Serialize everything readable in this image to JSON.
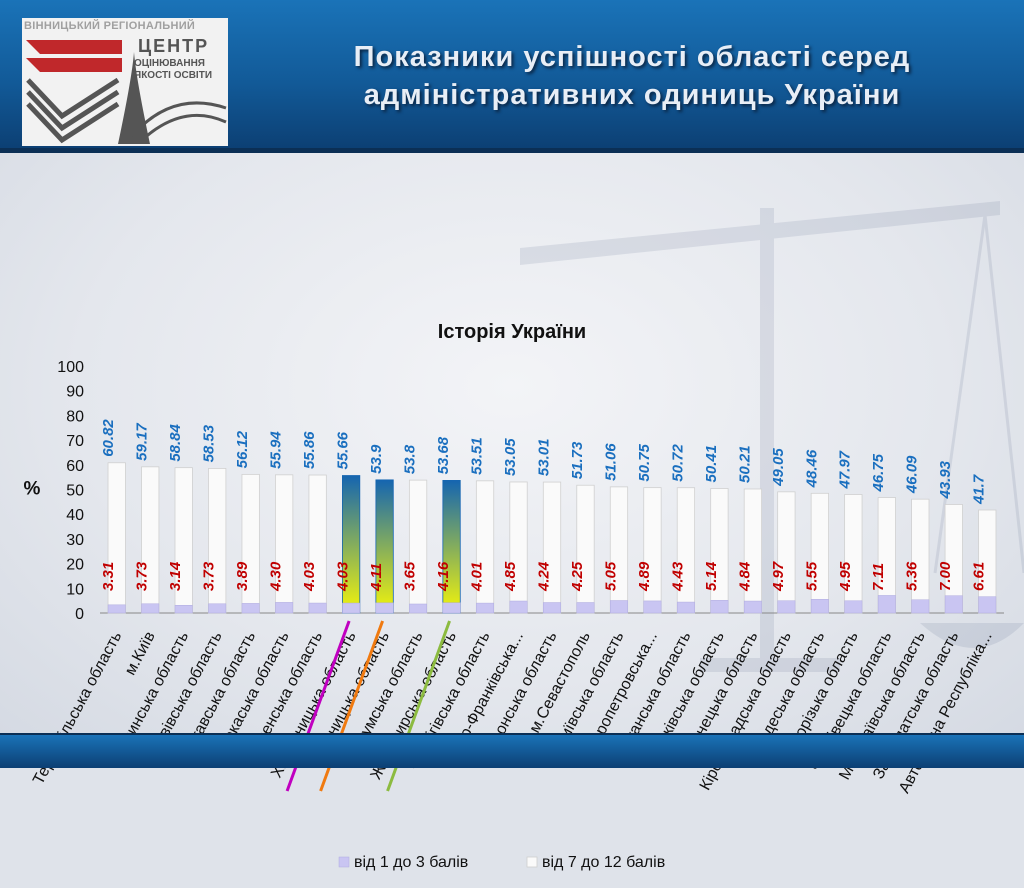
{
  "header": {
    "title_line1": "Показники успішності області серед",
    "title_line2": "адміністративних одиниць України"
  },
  "logo": {
    "line1": "ВІННИЦЬКИЙ РЕГІОНАЛЬНИЙ",
    "line2": "ЦЕНТР",
    "line3": "ОЦІНЮВАННЯ",
    "line4": "ЯКОСТІ ОСВІТИ"
  },
  "colors": {
    "low_series": "#c9c5f2",
    "high_series": "#fafafa",
    "high_label": "#1a6fbf",
    "low_label": "#c00000",
    "highlight_gradient": [
      "#1565b0",
      "#f3f50a"
    ],
    "marker_colors": [
      "#c000c0",
      "#f07a10",
      "#8cbb40"
    ]
  },
  "chart_data": {
    "type": "bar",
    "title": "Історія України",
    "ylabel": "%",
    "ylim": [
      0,
      100
    ],
    "yticks": [
      0,
      10,
      20,
      30,
      40,
      50,
      60,
      70,
      80,
      90,
      100
    ],
    "legend_position": "bottom",
    "categories": [
      "Тернопільська область",
      "м.Київ",
      "Волинська область",
      "Львівська область",
      "Полтавська область",
      "Черкаська область",
      "Рівненська область",
      "Хмельницька область",
      "Вінницька область",
      "Сумська область",
      "Житомирська область",
      "Чернігівська область",
      "Івано-Франківська...",
      "Херсонська область",
      "м.Севастополь",
      "Київська область",
      "Дніпропетровська...",
      "Луганська область",
      "Харківська область",
      "Донецька область",
      "Кіровоградська область",
      "Одеська область",
      "Запорізька область",
      "Чернівецька область",
      "Миколаївська область",
      "Закарпатська область",
      "Автономна Республіка..."
    ],
    "series": [
      {
        "name": "від 1 до 3 балів",
        "values": [
          3.31,
          3.73,
          3.14,
          3.73,
          3.89,
          4.3,
          4.03,
          4.03,
          4.11,
          3.65,
          4.16,
          4.01,
          4.85,
          4.24,
          4.25,
          5.05,
          4.89,
          4.43,
          5.14,
          4.84,
          4.97,
          5.55,
          4.95,
          7.11,
          5.36,
          7.0,
          6.61
        ],
        "labels": [
          "3.31",
          "3.73",
          "3.14",
          "3.73",
          "3.89",
          "4.30",
          "4.03",
          "4.03",
          "4.11",
          "3.65",
          "4.16",
          "4.01",
          "4.85",
          "4.24",
          "4.25",
          "5.05",
          "4.89",
          "4.43",
          "5.14",
          "4.84",
          "4.97",
          "5.55",
          "4.95",
          "7.11",
          "5.36",
          "7.00",
          "6.61"
        ]
      },
      {
        "name": "від 7 до 12 балів",
        "values": [
          60.82,
          59.17,
          58.84,
          58.53,
          56.12,
          55.94,
          55.86,
          55.66,
          53.9,
          53.8,
          53.68,
          53.51,
          53.05,
          53.01,
          51.73,
          51.06,
          50.75,
          50.72,
          50.41,
          50.21,
          49.05,
          48.46,
          47.97,
          46.75,
          46.09,
          43.93,
          41.7
        ],
        "labels": [
          "60.82",
          "59.17",
          "58.84",
          "58.53",
          "56.12",
          "55.94",
          "55.86",
          "55.66",
          "53.9",
          "53.8",
          "53.68",
          "53.51",
          "53.05",
          "53.01",
          "51.73",
          "51.06",
          "50.75",
          "50.72",
          "50.41",
          "50.21",
          "49.05",
          "48.46",
          "47.97",
          "46.75",
          "46.09",
          "43.93",
          "41.7"
        ]
      }
    ],
    "highlighted_categories": [
      "Хмельницька область",
      "Вінницька область",
      "Житомирська область"
    ]
  }
}
